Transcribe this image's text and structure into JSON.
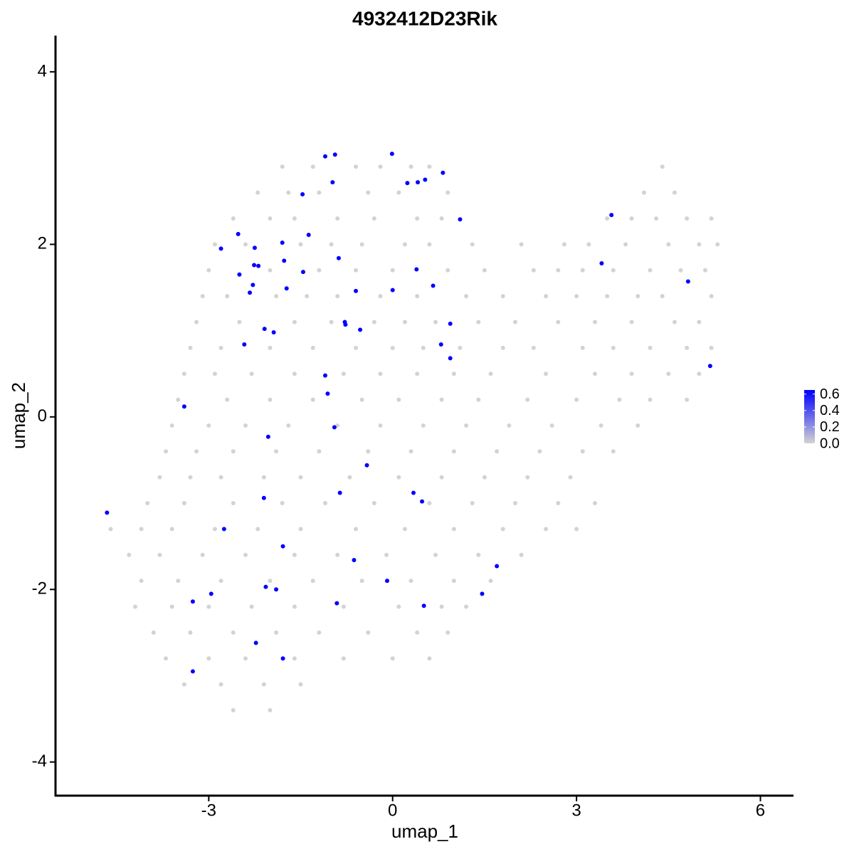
{
  "chart_data": {
    "type": "scatter",
    "title": "4932412D23Rik",
    "x_label": "umap_1",
    "y_label": "umap_2",
    "xlim": [
      -5.5,
      6.54
    ],
    "ylim": [
      -4.39,
      4.42
    ],
    "xticks": [
      -3,
      0,
      3,
      6
    ],
    "yticks": [
      -4,
      -2,
      0,
      2,
      4
    ],
    "color_low": "#d3d3d3",
    "color_high": "#0000ff",
    "clim": [
      0,
      0.65
    ],
    "cticks": [
      {
        "value": 0,
        "label": "0.0"
      },
      {
        "value": 0.2,
        "label": "0.2"
      },
      {
        "value": 0.4,
        "label": "0.4"
      },
      {
        "value": 0.6,
        "label": "0.6"
      }
    ],
    "x": [
      -1.8,
      -1.3,
      -0.6,
      -0.2,
      0.3,
      0.6,
      4.4,
      -2.2,
      -1.7,
      -1.2,
      -0.4,
      0.1,
      0.9,
      4.1,
      4.6,
      -2.6,
      -2.0,
      -1.6,
      -0.9,
      -0.3,
      0.4,
      0.8,
      3.5,
      3.9,
      4.3,
      4.8,
      5.2,
      -2.9,
      -2.4,
      -1.5,
      -1.0,
      -0.5,
      0.2,
      0.6,
      1.3,
      2.1,
      2.8,
      3.2,
      3.8,
      4.5,
      5.0,
      5.3,
      -3.0,
      -2.0,
      -1.2,
      -0.6,
      0.0,
      0.9,
      1.5,
      2.3,
      2.7,
      3.1,
      3.6,
      4.2,
      4.7,
      5.1,
      -3.1,
      -2.7,
      -1.9,
      -1.4,
      -0.9,
      -0.2,
      0.4,
      1.2,
      1.8,
      2.5,
      3.0,
      3.5,
      4.0,
      4.4,
      5.2,
      -3.2,
      -2.5,
      -1.6,
      -1.0,
      -0.3,
      0.2,
      0.7,
      1.4,
      2.0,
      2.7,
      3.3,
      3.9,
      4.6,
      5.0,
      -3.3,
      -2.8,
      -2.0,
      -1.3,
      -0.6,
      0.0,
      0.5,
      1.1,
      1.8,
      2.3,
      3.1,
      3.6,
      4.2,
      4.8,
      5.2,
      -3.4,
      -2.9,
      -2.3,
      -1.6,
      -0.8,
      -0.2,
      0.4,
      1.0,
      1.6,
      2.5,
      3.3,
      3.9,
      4.5,
      5.0,
      -3.5,
      -2.7,
      -2.0,
      -1.3,
      -0.5,
      0.1,
      0.8,
      1.4,
      2.2,
      3.0,
      3.7,
      4.2,
      4.8,
      -3.6,
      -3.0,
      -2.4,
      -1.7,
      -0.9,
      -0.2,
      0.5,
      1.2,
      1.9,
      2.6,
      3.4,
      4.0,
      -3.7,
      -3.2,
      -2.6,
      -1.9,
      -1.2,
      -0.4,
      0.3,
      1.0,
      1.7,
      2.4,
      3.1,
      3.6,
      -3.8,
      -3.3,
      -2.8,
      -2.1,
      -1.5,
      -0.7,
      0.1,
      0.8,
      1.5,
      2.2,
      2.9,
      -4.0,
      -3.4,
      -2.6,
      -1.8,
      -1.1,
      -0.3,
      0.6,
      1.3,
      2.0,
      2.7,
      3.3,
      -4.6,
      -4.1,
      -3.6,
      -2.9,
      -2.2,
      -1.5,
      -0.6,
      0.2,
      1.0,
      1.8,
      2.5,
      3.0,
      -4.3,
      -3.8,
      -3.1,
      -2.4,
      -1.6,
      -0.9,
      -0.1,
      0.7,
      1.4,
      2.1,
      -4.1,
      -3.5,
      -2.8,
      -2.0,
      -1.3,
      -0.5,
      0.3,
      1.0,
      1.6,
      -4.2,
      -3.6,
      -3.0,
      -2.3,
      -1.6,
      -0.8,
      0.1,
      0.8,
      1.2,
      -3.9,
      -3.3,
      -2.6,
      -1.9,
      -1.2,
      -0.4,
      0.4,
      0.9,
      -3.7,
      -3.0,
      -2.4,
      -1.6,
      -0.8,
      0.0,
      0.6,
      -3.4,
      -2.8,
      -2.1,
      -1.5,
      -2.6,
      -2.0,
      -4.66,
      -3.4,
      -2.52,
      -2.8,
      -2.25,
      -2.5,
      -2.26,
      -2.19,
      -2.28,
      -2.33,
      -2.42,
      -2.09,
      -1.94,
      -1.8,
      -1.77,
      -1.73,
      -1.46,
      -1.37,
      -1.47,
      -1.1,
      -0.94,
      -0.98,
      -0.88,
      -0.6,
      -0.78,
      -0.77,
      -0.53,
      -0.01,
      0.24,
      0.41,
      0.53,
      0.82,
      1.1,
      0.39,
      0.0,
      0.66,
      0.94,
      0.79,
      0.94,
      -1.1,
      -1.06,
      -0.95,
      -2.03,
      -0.42,
      -0.86,
      0.34,
      0.48,
      -2.1,
      -2.75,
      -1.79,
      -0.63,
      -0.09,
      -0.91,
      0.51,
      1.46,
      1.7,
      -2.07,
      -1.9,
      -2.96,
      -3.26,
      -2.23,
      -1.79,
      -3.26,
      3.41,
      3.57,
      4.82,
      5.18
    ],
    "y": [
      2.9,
      2.9,
      2.9,
      2.9,
      2.9,
      2.9,
      2.9,
      2.6,
      2.6,
      2.6,
      2.6,
      2.6,
      2.6,
      2.6,
      2.6,
      2.3,
      2.3,
      2.3,
      2.3,
      2.3,
      2.3,
      2.3,
      2.3,
      2.3,
      2.3,
      2.3,
      2.3,
      2.0,
      2.0,
      2.0,
      2.0,
      2.0,
      2.0,
      2.0,
      2.0,
      2.0,
      2.0,
      2.0,
      2.0,
      2.0,
      2.0,
      2.0,
      1.7,
      1.7,
      1.7,
      1.7,
      1.7,
      1.7,
      1.7,
      1.7,
      1.7,
      1.7,
      1.7,
      1.7,
      1.7,
      1.7,
      1.4,
      1.4,
      1.4,
      1.4,
      1.4,
      1.4,
      1.4,
      1.4,
      1.4,
      1.4,
      1.4,
      1.4,
      1.4,
      1.4,
      1.4,
      1.1,
      1.1,
      1.1,
      1.1,
      1.1,
      1.1,
      1.1,
      1.1,
      1.1,
      1.1,
      1.1,
      1.1,
      1.1,
      1.1,
      0.8,
      0.8,
      0.8,
      0.8,
      0.8,
      0.8,
      0.8,
      0.8,
      0.8,
      0.8,
      0.8,
      0.8,
      0.8,
      0.8,
      0.8,
      0.5,
      0.5,
      0.5,
      0.5,
      0.5,
      0.5,
      0.5,
      0.5,
      0.5,
      0.5,
      0.5,
      0.5,
      0.5,
      0.5,
      0.2,
      0.2,
      0.2,
      0.2,
      0.2,
      0.2,
      0.2,
      0.2,
      0.2,
      0.2,
      0.2,
      0.2,
      0.2,
      -0.1,
      -0.1,
      -0.1,
      -0.1,
      -0.1,
      -0.1,
      -0.1,
      -0.1,
      -0.1,
      -0.1,
      -0.1,
      -0.1,
      -0.4,
      -0.4,
      -0.4,
      -0.4,
      -0.4,
      -0.4,
      -0.4,
      -0.4,
      -0.4,
      -0.4,
      -0.4,
      -0.4,
      -0.7,
      -0.7,
      -0.7,
      -0.7,
      -0.7,
      -0.7,
      -0.7,
      -0.7,
      -0.7,
      -0.7,
      -0.7,
      -1.0,
      -1.0,
      -1.0,
      -1.0,
      -1.0,
      -1.0,
      -1.0,
      -1.0,
      -1.0,
      -1.0,
      -1.0,
      -1.3,
      -1.3,
      -1.3,
      -1.3,
      -1.3,
      -1.3,
      -1.3,
      -1.3,
      -1.3,
      -1.3,
      -1.3,
      -1.3,
      -1.6,
      -1.6,
      -1.6,
      -1.6,
      -1.6,
      -1.6,
      -1.6,
      -1.6,
      -1.6,
      -1.6,
      -1.9,
      -1.9,
      -1.9,
      -1.9,
      -1.9,
      -1.9,
      -1.9,
      -1.9,
      -1.9,
      -2.2,
      -2.2,
      -2.2,
      -2.2,
      -2.2,
      -2.2,
      -2.2,
      -2.2,
      -2.2,
      -2.5,
      -2.5,
      -2.5,
      -2.5,
      -2.5,
      -2.5,
      -2.5,
      -2.5,
      -2.8,
      -2.8,
      -2.8,
      -2.8,
      -2.8,
      -2.8,
      -2.8,
      -3.1,
      -3.1,
      -3.1,
      -3.1,
      -3.4,
      -3.4,
      -1.11,
      0.12,
      2.12,
      1.95,
      1.96,
      1.65,
      1.76,
      1.75,
      1.53,
      1.44,
      0.84,
      1.02,
      0.98,
      2.02,
      1.81,
      1.49,
      1.68,
      2.11,
      2.58,
      3.02,
      3.04,
      2.72,
      1.84,
      1.46,
      1.1,
      1.07,
      1.01,
      3.05,
      2.71,
      2.72,
      2.75,
      2.83,
      2.29,
      1.71,
      1.47,
      1.52,
      1.08,
      0.84,
      0.68,
      0.48,
      0.27,
      -0.12,
      -0.23,
      -0.56,
      -0.88,
      -0.88,
      -0.98,
      -0.94,
      -1.3,
      -1.5,
      -1.66,
      -1.9,
      -2.16,
      -2.19,
      -2.05,
      -1.73,
      -1.97,
      -2.0,
      -2.05,
      -2.14,
      -2.62,
      -2.8,
      -2.95,
      1.78,
      2.34,
      1.57,
      0.59
    ],
    "values": [
      0,
      0,
      0,
      0,
      0,
      0,
      0,
      0,
      0,
      0,
      0,
      0,
      0,
      0,
      0,
      0,
      0,
      0,
      0,
      0,
      0,
      0,
      0,
      0,
      0,
      0,
      0,
      0,
      0,
      0,
      0,
      0,
      0,
      0,
      0,
      0,
      0,
      0,
      0,
      0,
      0,
      0,
      0,
      0,
      0,
      0,
      0,
      0,
      0,
      0,
      0,
      0,
      0,
      0,
      0,
      0,
      0,
      0,
      0,
      0,
      0,
      0,
      0,
      0,
      0,
      0,
      0,
      0,
      0,
      0,
      0,
      0,
      0,
      0,
      0,
      0,
      0,
      0,
      0,
      0,
      0,
      0,
      0,
      0,
      0,
      0,
      0,
      0,
      0,
      0,
      0,
      0,
      0,
      0,
      0,
      0,
      0,
      0,
      0,
      0,
      0,
      0,
      0,
      0,
      0,
      0,
      0,
      0,
      0,
      0,
      0,
      0,
      0,
      0,
      0,
      0,
      0,
      0,
      0,
      0,
      0,
      0,
      0,
      0,
      0,
      0,
      0,
      0,
      0,
      0,
      0,
      0,
      0,
      0,
      0,
      0,
      0,
      0,
      0,
      0,
      0,
      0,
      0,
      0,
      0,
      0,
      0,
      0,
      0,
      0,
      0,
      0,
      0,
      0,
      0,
      0,
      0,
      0,
      0,
      0,
      0,
      0,
      0,
      0,
      0,
      0,
      0,
      0,
      0,
      0,
      0,
      0,
      0,
      0,
      0,
      0,
      0,
      0,
      0,
      0,
      0,
      0,
      0,
      0,
      0,
      0,
      0,
      0,
      0,
      0,
      0,
      0,
      0,
      0,
      0,
      0,
      0,
      0,
      0,
      0,
      0,
      0,
      0,
      0,
      0,
      0,
      0,
      0,
      0,
      0,
      0,
      0,
      0,
      0,
      0,
      0,
      0,
      0,
      0,
      0,
      0,
      0,
      0,
      0,
      0,
      0,
      0,
      0,
      0,
      0,
      0,
      0,
      0,
      0,
      0.65,
      0.65,
      0.65,
      0.65,
      0.65,
      0.65,
      0.65,
      0.65,
      0.65,
      0.65,
      0.65,
      0.65,
      0.65,
      0.65,
      0.65,
      0.65,
      0.65,
      0.65,
      0.65,
      0.65,
      0.65,
      0.65,
      0.65,
      0.65,
      0.65,
      0.65,
      0.65,
      0.65,
      0.65,
      0.65,
      0.65,
      0.65,
      0.65,
      0.65,
      0.65,
      0.65,
      0.65,
      0.65,
      0.65,
      0.65,
      0.65,
      0.65,
      0.65,
      0.65,
      0.65,
      0.65,
      0.65,
      0.65,
      0.65,
      0.65,
      0.65,
      0.65,
      0.65,
      0.65,
      0.65,
      0.65,
      0.65,
      0.65,
      0.65,
      0.65,
      0.65,
      0.65,
      0.65,
      0.65,
      0.65,
      0.65,
      0.65
    ]
  }
}
